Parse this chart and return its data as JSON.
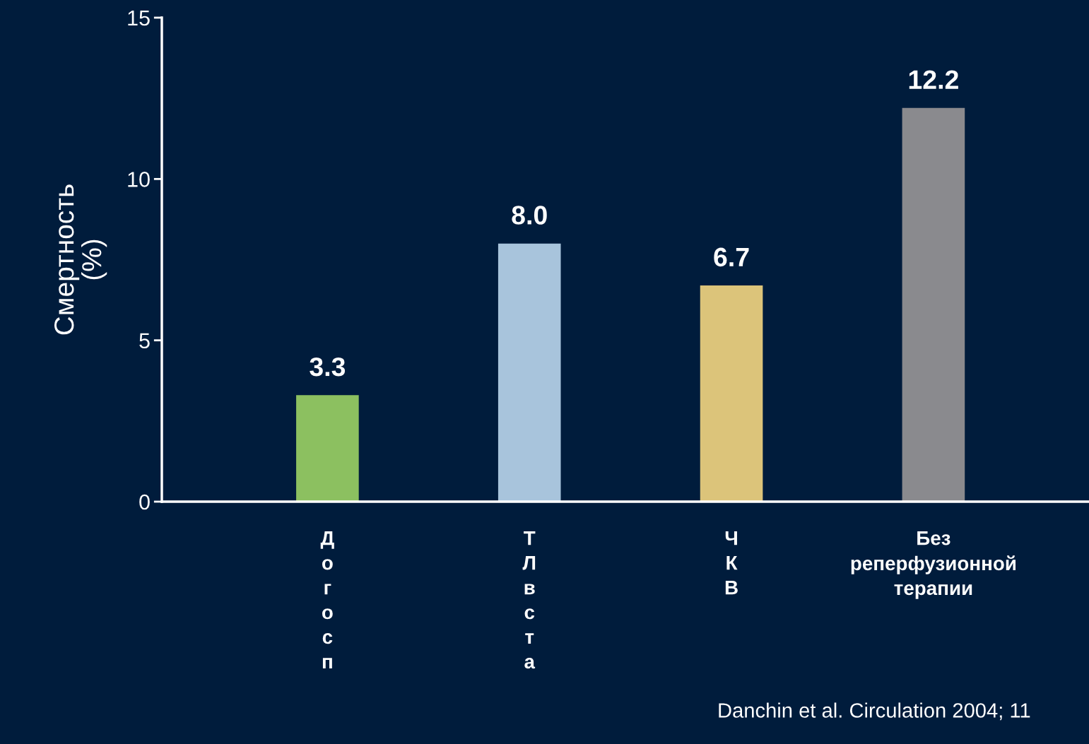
{
  "chart_data": {
    "type": "bar",
    "ylabel": "Смертность\n(%)",
    "categories": [
      "Догосп",
      "ТЛвста",
      "ЧКВ",
      "Без\nреперфузионной\nтерапии"
    ],
    "values": [
      3.3,
      8.0,
      6.7,
      12.2
    ],
    "colors": [
      "#8cc060",
      "#a8c4dc",
      "#dcc47a",
      "#8a8a8e"
    ],
    "value_labels": [
      "3.3",
      "8.0",
      "6.7",
      "12.2"
    ],
    "ylim": [
      0,
      15
    ],
    "yticks": [
      0,
      5,
      10,
      15
    ],
    "grid": false,
    "annotations": [
      "Danchin et al. Circulation 2004; 11"
    ]
  }
}
